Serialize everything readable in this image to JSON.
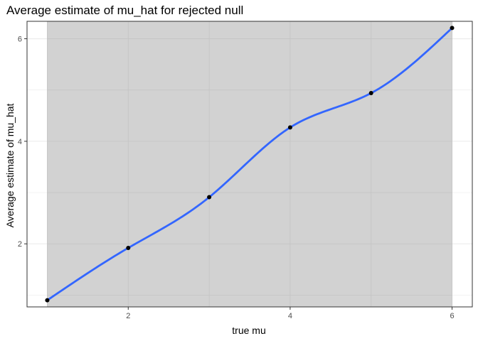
{
  "chart_data": {
    "type": "line",
    "title": "Average estimate of mu_hat for rejected null",
    "xlabel": "true mu",
    "ylabel": "Average estimate of mu_hat",
    "x": [
      1,
      2,
      3,
      4,
      5,
      6
    ],
    "series": [
      {
        "values": [
          0.9,
          1.92,
          2.91,
          4.27,
          4.94,
          6.21
        ]
      }
    ],
    "smooth": true,
    "confidence_band": true,
    "xlim": [
      0.75,
      6.25
    ],
    "ylim": [
      0.77,
      6.34
    ],
    "x_ticks": [
      2,
      4,
      6
    ],
    "y_ticks": [
      2,
      4,
      6
    ],
    "x_minor_ticks": [
      1,
      3,
      5
    ],
    "y_minor_ticks": [
      1,
      3,
      5
    ],
    "grid": true,
    "colors": {
      "line": "#3366ff",
      "points": "#000000",
      "band": "#d0d0d0",
      "grid": "#ebebeb",
      "panel_border": "#333333"
    }
  }
}
